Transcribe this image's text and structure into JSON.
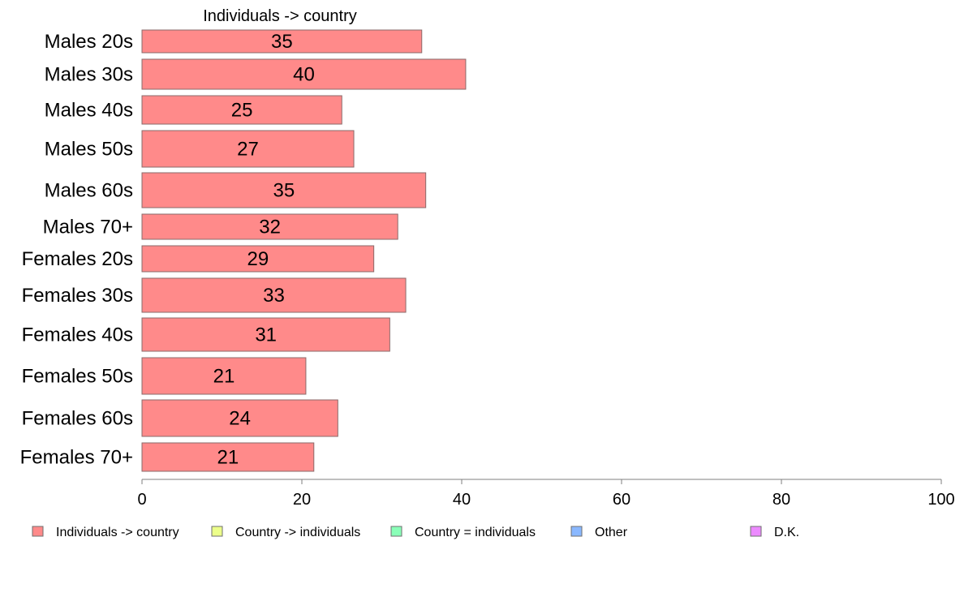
{
  "chart_data": {
    "type": "bar",
    "orientation": "horizontal",
    "column_title": "Individuals -> country",
    "categories": [
      "Males 20s",
      "Males 30s",
      "Males 40s",
      "Males 50s",
      "Males 60s",
      "Males 70+",
      "Females 20s",
      "Females 30s",
      "Females 40s",
      "Females 50s",
      "Females 60s",
      "Females 70+"
    ],
    "series": [
      {
        "name": "Individuals -> country",
        "color": "#ff8a8a",
        "values": [
          35,
          40.5,
          25,
          26.5,
          35.5,
          32,
          29,
          33,
          31,
          20.5,
          24.5,
          21.5
        ],
        "labels": [
          "35",
          "40",
          "25",
          "27",
          "35",
          "32",
          "29",
          "33",
          "31",
          "21",
          "24",
          "21"
        ]
      }
    ],
    "xlim": [
      0,
      100
    ],
    "xticks": [
      "0",
      "20",
      "40",
      "60",
      "80",
      "100"
    ],
    "legend": {
      "placement": "bottom",
      "items": [
        {
          "label": "Individuals -> country",
          "color": "#ff8a8a"
        },
        {
          "label": "Country -> individuals",
          "color": "#ecff8a"
        },
        {
          "label": "Country = individuals",
          "color": "#8affb8"
        },
        {
          "label": "Other",
          "color": "#8ab8ff"
        },
        {
          "label": "D.K.",
          "color": "#ec8aff"
        }
      ]
    }
  }
}
